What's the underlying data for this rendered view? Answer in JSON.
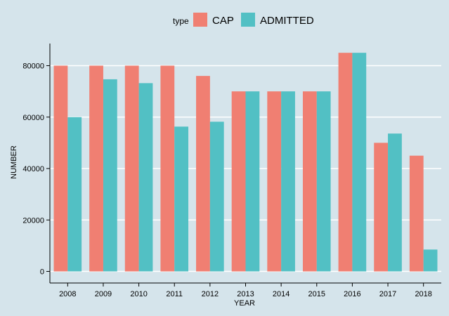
{
  "chart_data": {
    "type": "bar",
    "categories": [
      "2008",
      "2009",
      "2010",
      "2011",
      "2012",
      "2013",
      "2014",
      "2015",
      "2016",
      "2017",
      "2018"
    ],
    "series": [
      {
        "name": "CAP",
        "color": "#f07f72",
        "values": [
          80000,
          80000,
          80000,
          80000,
          76000,
          70000,
          70000,
          70000,
          85000,
          50000,
          45000
        ]
      },
      {
        "name": "ADMITTED",
        "color": "#52c0c4",
        "values": [
          60000,
          74700,
          73200,
          56300,
          58200,
          70000,
          70000,
          70000,
          85000,
          53600,
          8500
        ]
      }
    ],
    "title": "",
    "xlabel": "YEAR",
    "ylabel": "NUMBER",
    "ylim": [
      0,
      93000
    ],
    "yticks": [
      0,
      20000,
      40000,
      60000,
      80000
    ],
    "legend_title": "type",
    "legend_position": "top",
    "grid": true,
    "background_color": "#d5e4eb",
    "gridline_color": "#ffffff"
  }
}
